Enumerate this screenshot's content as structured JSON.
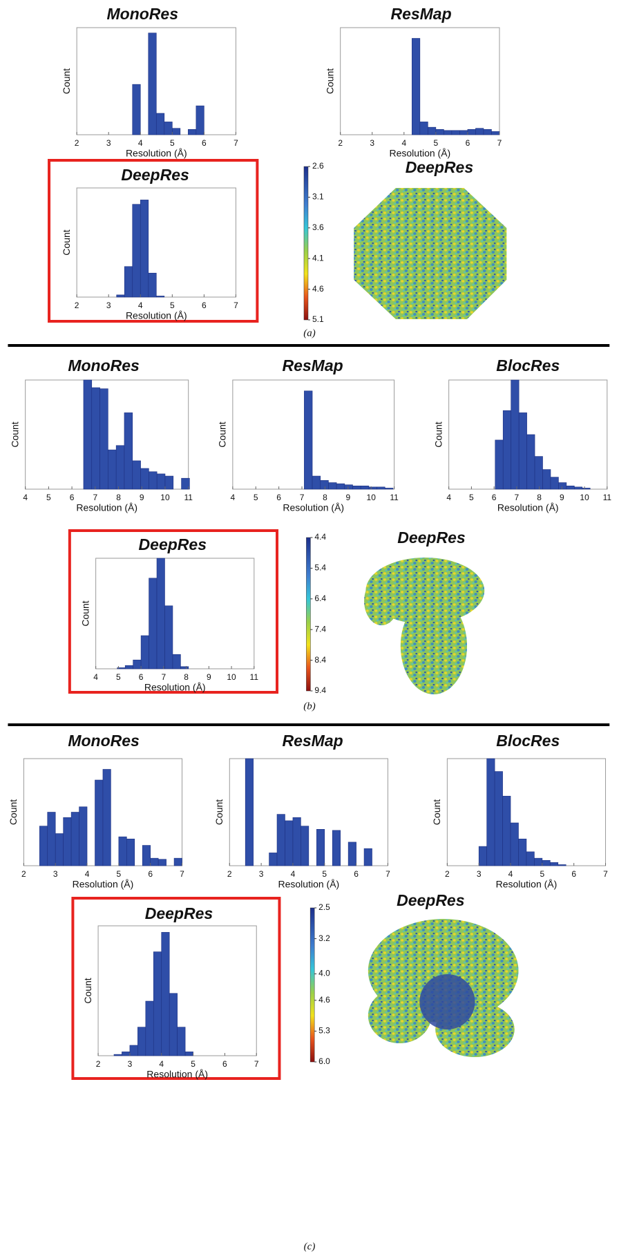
{
  "chart_data": [
    {
      "type": "histogram",
      "title": "MonoRes",
      "xlabel": "Resolution (Å)",
      "ylabel": "Count",
      "color": "#2f4ea8",
      "bins": [
        3.75,
        4.0,
        4.25,
        4.5,
        4.75,
        5.0,
        5.25,
        5.5,
        5.75,
        6.0
      ],
      "values": [
        47,
        0,
        95,
        20,
        12,
        6,
        0,
        5,
        27
      ],
      "xlim": [
        2,
        7
      ],
      "xticks": [
        2,
        3,
        4,
        5,
        6,
        7
      ],
      "ylim": [
        0,
        100
      ],
      "highlight": false
    },
    {
      "type": "histogram",
      "title": "ResMap",
      "xlabel": "Resolution (Å)",
      "ylabel": "Count",
      "color": "#2f4ea8",
      "bins": [
        4.25,
        4.5,
        4.75,
        5.0,
        5.25,
        5.5,
        5.75,
        6.0,
        6.25,
        6.5,
        6.75,
        7.0
      ],
      "values": [
        90,
        12,
        7,
        5,
        4,
        4,
        4,
        5,
        6,
        5,
        3
      ],
      "xlim": [
        2,
        7
      ],
      "xticks": [
        2,
        3,
        4,
        5,
        6,
        7
      ],
      "ylim": [
        0,
        100
      ],
      "highlight": false
    },
    {
      "type": "histogram",
      "title": "DeepRes",
      "xlabel": "Resolution (Å)",
      "ylabel": "Count",
      "color": "#2f4ea8",
      "bins": [
        3.25,
        3.5,
        3.75,
        4.0,
        4.25,
        4.5,
        4.75
      ],
      "values": [
        2,
        28,
        85,
        89,
        22,
        1
      ],
      "xlim": [
        2,
        7
      ],
      "xticks": [
        2,
        3,
        4,
        5,
        6,
        7
      ],
      "ylim": [
        0,
        100
      ],
      "highlight": true
    },
    {
      "type": "volume",
      "title": "DeepRes",
      "clim": [
        2.6,
        5.1
      ],
      "ticks": [
        2.6,
        3.1,
        3.6,
        4.1,
        4.6,
        5.1
      ]
    },
    {
      "type": "histogram",
      "title": "MonoRes",
      "xlabel": "Resolution (Å)",
      "ylabel": "Count",
      "color": "#2f4ea8",
      "bins": [
        6.5,
        6.85,
        7.2,
        7.55,
        7.9,
        8.25,
        8.6,
        8.95,
        9.3,
        9.65,
        10.0,
        10.35,
        10.7,
        11.05
      ],
      "values": [
        100,
        93,
        92,
        36,
        40,
        70,
        26,
        19,
        16,
        14,
        12,
        0,
        10
      ],
      "xlim": [
        4,
        11
      ],
      "xticks": [
        4,
        5,
        6,
        7,
        8,
        9,
        10,
        11
      ],
      "ylim": [
        0,
        100
      ],
      "highlight": false
    },
    {
      "type": "histogram",
      "title": "ResMap",
      "xlabel": "Resolution (Å)",
      "ylabel": "Count",
      "color": "#2f4ea8",
      "bins": [
        7.1,
        7.45,
        7.8,
        8.15,
        8.5,
        8.85,
        9.2,
        9.55,
        9.9,
        10.25,
        10.6,
        10.95
      ],
      "values": [
        90,
        12,
        8,
        6,
        5,
        4,
        3,
        3,
        2,
        2,
        1
      ],
      "xlim": [
        4,
        11
      ],
      "xticks": [
        4,
        5,
        6,
        7,
        8,
        9,
        10,
        11
      ],
      "ylim": [
        0,
        100
      ],
      "highlight": false
    },
    {
      "type": "histogram",
      "title": "BlocRes",
      "xlabel": "Resolution (Å)",
      "ylabel": "Count",
      "color": "#2f4ea8",
      "bins": [
        6.05,
        6.4,
        6.75,
        7.1,
        7.45,
        7.8,
        8.15,
        8.5,
        8.85,
        9.2,
        9.55,
        9.9,
        10.25
      ],
      "values": [
        45,
        72,
        100,
        70,
        50,
        30,
        18,
        11,
        6,
        3,
        2,
        1
      ],
      "xlim": [
        4,
        11
      ],
      "xticks": [
        4,
        5,
        6,
        7,
        8,
        9,
        10,
        11
      ],
      "ylim": [
        0,
        100
      ],
      "highlight": false
    },
    {
      "type": "histogram",
      "title": "DeepRes",
      "xlabel": "Resolution (Å)",
      "ylabel": "Count",
      "color": "#2f4ea8",
      "bins": [
        4.95,
        5.3,
        5.65,
        6.0,
        6.35,
        6.7,
        7.05,
        7.4,
        7.75,
        8.1
      ],
      "values": [
        1,
        3,
        8,
        30,
        82,
        100,
        57,
        13,
        2
      ],
      "xlim": [
        4,
        11
      ],
      "xticks": [
        4,
        5,
        6,
        7,
        8,
        9,
        10,
        11
      ],
      "ylim": [
        0,
        100
      ],
      "highlight": true
    },
    {
      "type": "volume",
      "title": "DeepRes",
      "clim": [
        4.4,
        9.4
      ],
      "ticks": [
        4.4,
        5.4,
        6.4,
        7.4,
        8.4,
        9.4
      ]
    },
    {
      "type": "histogram",
      "title": "MonoRes",
      "xlabel": "Resolution (Å)",
      "ylabel": "Count",
      "color": "#2f4ea8",
      "bins": [
        2.5,
        2.75,
        3.0,
        3.25,
        3.5,
        3.75,
        4.0,
        4.25,
        4.5,
        4.75,
        5.0,
        5.25,
        5.5,
        5.75,
        6.0,
        6.25,
        6.5,
        6.75,
        7.0
      ],
      "values": [
        37,
        50,
        30,
        45,
        50,
        55,
        0,
        80,
        90,
        0,
        27,
        25,
        0,
        19,
        7,
        6,
        0,
        7
      ],
      "xlim": [
        2,
        7
      ],
      "xticks": [
        2,
        3,
        4,
        5,
        6,
        7
      ],
      "ylim": [
        0,
        100
      ],
      "highlight": false
    },
    {
      "type": "histogram",
      "title": "ResMap",
      "xlabel": "Resolution (Å)",
      "ylabel": "Count",
      "color": "#2f4ea8",
      "bins": [
        2.5,
        2.75,
        3.0,
        3.25,
        3.5,
        3.75,
        4.0,
        4.25,
        4.5,
        4.75,
        5.0,
        5.25,
        5.5,
        5.75,
        6.0,
        6.25,
        6.5
      ],
      "values": [
        100,
        0,
        0,
        12,
        48,
        42,
        45,
        37,
        0,
        34,
        0,
        33,
        0,
        22,
        0,
        16
      ],
      "xlim": [
        2,
        7
      ],
      "xticks": [
        2,
        3,
        4,
        5,
        6,
        7
      ],
      "ylim": [
        0,
        100
      ],
      "highlight": false
    },
    {
      "type": "histogram",
      "title": "BlocRes",
      "xlabel": "Resolution (Å)",
      "ylabel": "Count",
      "color": "#2f4ea8",
      "bins": [
        3.0,
        3.25,
        3.5,
        3.75,
        4.0,
        4.25,
        4.5,
        4.75,
        5.0,
        5.25,
        5.5,
        5.75
      ],
      "values": [
        18,
        100,
        88,
        65,
        40,
        25,
        13,
        7,
        5,
        3,
        1
      ],
      "xlim": [
        2,
        7
      ],
      "xticks": [
        2,
        3,
        4,
        5,
        6,
        7
      ],
      "ylim": [
        0,
        100
      ],
      "highlight": false
    },
    {
      "type": "histogram",
      "title": "DeepRes",
      "xlabel": "Resolution (Å)",
      "ylabel": "Count",
      "color": "#2f4ea8",
      "bins": [
        2.5,
        2.75,
        3.0,
        3.25,
        3.5,
        3.75,
        4.0,
        4.25,
        4.5,
        4.75,
        5.0
      ],
      "values": [
        1,
        3,
        8,
        22,
        42,
        80,
        95,
        48,
        22,
        3
      ],
      "xlim": [
        2,
        7
      ],
      "xticks": [
        2,
        3,
        4,
        5,
        6,
        7
      ],
      "ylim": [
        0,
        100
      ],
      "highlight": true
    },
    {
      "type": "volume",
      "title": "DeepRes",
      "clim": [
        2.5,
        6.0
      ],
      "ticks": [
        2.5,
        3.2,
        {
          "value": 4.0,
          "label": "4.0"
        },
        4.6,
        5.3,
        {
          "value": 6.0,
          "label": "6.0"
        }
      ]
    }
  ],
  "captions": [
    "(a)",
    "(b)",
    "(c)"
  ]
}
